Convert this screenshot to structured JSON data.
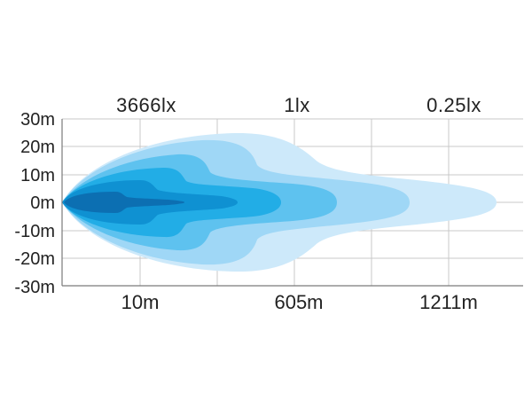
{
  "chart_data": {
    "type": "area",
    "y_ticks": [
      "30m",
      "20m",
      "10m",
      "0m",
      "-10m",
      "-20m",
      "-30m"
    ],
    "ylim": [
      -30,
      30
    ],
    "x_ticks": [
      "10m",
      "605m",
      "1211m"
    ],
    "lux_labels": [
      "3666lx",
      "1lx",
      "0.25lx"
    ],
    "grid": true,
    "contours": [
      {
        "level": 1,
        "color": "#cde9fa"
      },
      {
        "level": 2,
        "color": "#9fd7f6"
      },
      {
        "level": 3,
        "color": "#5ec2ef"
      },
      {
        "level": 4,
        "color": "#22ade6"
      },
      {
        "level": 5,
        "color": "#0f91d2"
      },
      {
        "level": 6,
        "color": "#0c6fb2"
      }
    ]
  }
}
